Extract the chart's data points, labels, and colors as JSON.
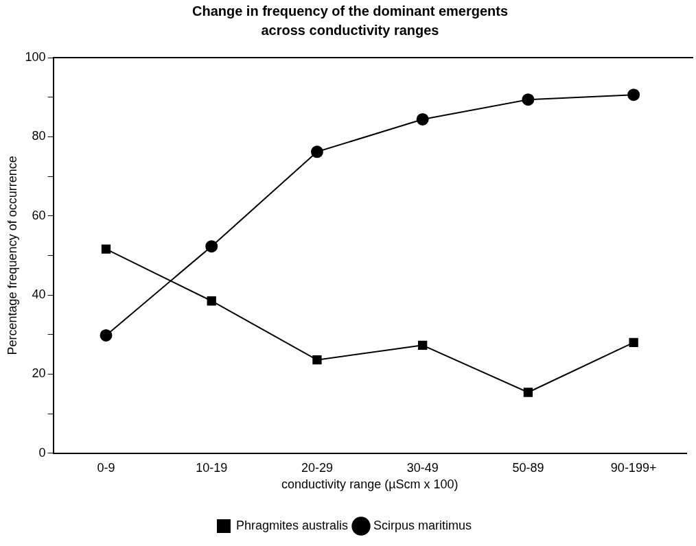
{
  "chart_data": {
    "type": "line",
    "title": "Change in frequency of the dominant emergents across conductivity ranges",
    "xlabel": "conductivity range (µScm x 100)",
    "ylabel": "Percentage frequency of occurrence",
    "categories": [
      "0-9",
      "10-19",
      "20-29",
      "30-49",
      "50-89",
      "90-199+"
    ],
    "series": [
      {
        "name": "Phragmites australis",
        "color": "#000000",
        "marker": "square",
        "values": [
          51.6,
          38.5,
          23.6,
          27.3,
          15.4,
          28
        ]
      },
      {
        "name": "Scirpus maritimus",
        "color": "#000000",
        "marker": "circle",
        "values": [
          29.8,
          52.3,
          76.2,
          84.4,
          89.4,
          90.6
        ]
      }
    ],
    "ylim": [
      0,
      100
    ],
    "yticks": [
      0,
      {
        "value": 10,
        "label": null
      },
      20,
      {
        "value": 30,
        "label": null
      },
      40,
      {
        "value": 50,
        "label": null
      },
      60,
      {
        "value": 70,
        "label": null
      },
      80,
      {
        "value": 90,
        "label": null
      },
      100
    ],
    "grid": false,
    "legend": "bottom",
    "line_style": "solid"
  }
}
